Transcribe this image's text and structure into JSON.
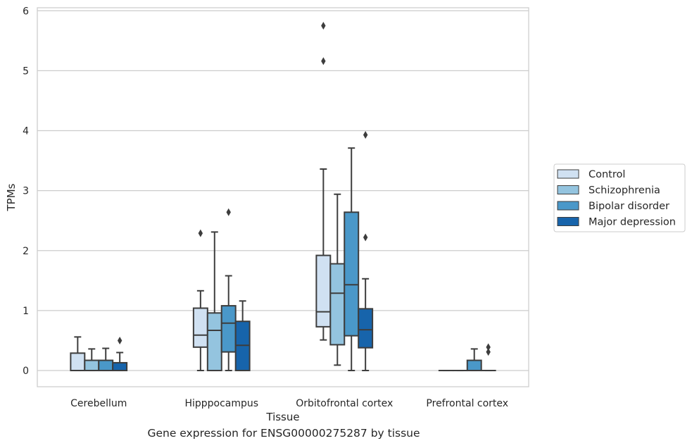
{
  "caption": "Gene expression for ENSG00000275287 by tissue",
  "chart_data": {
    "type": "box",
    "xlabel": "Tissue",
    "ylabel": "TPMs",
    "ylim": [
      -0.27,
      6.05
    ],
    "yticks": [
      0,
      1,
      2,
      3,
      4,
      5,
      6
    ],
    "grid": "horizontal",
    "legend_position": "right",
    "categories": [
      "Cerebellum",
      "Hipppocampus",
      "Orbitofrontal cortex",
      "Prefrontal cortex"
    ],
    "series": [
      {
        "name": "Control",
        "color": "#d0e1f2",
        "boxes": [
          {
            "whislo": 0.0,
            "q1": 0.0,
            "med": 0.0,
            "q3": 0.29,
            "whishi": 0.56,
            "fliers": []
          },
          {
            "whislo": 0.0,
            "q1": 0.39,
            "med": 0.59,
            "q3": 1.04,
            "whishi": 1.33,
            "fliers": [
              2.29
            ]
          },
          {
            "whislo": 0.51,
            "q1": 0.73,
            "med": 0.98,
            "q3": 1.92,
            "whishi": 3.36,
            "fliers": [
              5.16,
              5.75
            ]
          },
          {
            "whislo": 0.0,
            "q1": 0.0,
            "med": 0.0,
            "q3": 0.0,
            "whishi": 0.0,
            "fliers": []
          }
        ]
      },
      {
        "name": "Schizophrenia",
        "color": "#94c4df",
        "boxes": [
          {
            "whislo": 0.0,
            "q1": 0.0,
            "med": 0.0,
            "q3": 0.17,
            "whishi": 0.36,
            "fliers": []
          },
          {
            "whislo": 0.0,
            "q1": 0.0,
            "med": 0.67,
            "q3": 0.96,
            "whishi": 2.31,
            "fliers": []
          },
          {
            "whislo": 0.09,
            "q1": 0.43,
            "med": 1.29,
            "q3": 1.78,
            "whishi": 2.94,
            "fliers": []
          },
          {
            "whislo": 0.0,
            "q1": 0.0,
            "med": 0.0,
            "q3": 0.0,
            "whishi": 0.0,
            "fliers": []
          }
        ]
      },
      {
        "name": "Bipolar disorder",
        "color": "#4a98c9",
        "boxes": [
          {
            "whislo": 0.0,
            "q1": 0.0,
            "med": 0.0,
            "q3": 0.17,
            "whishi": 0.37,
            "fliers": []
          },
          {
            "whislo": 0.0,
            "q1": 0.31,
            "med": 0.79,
            "q3": 1.08,
            "whishi": 1.58,
            "fliers": [
              2.64
            ]
          },
          {
            "whislo": 0.0,
            "q1": 0.58,
            "med": 1.43,
            "q3": 2.64,
            "whishi": 3.71,
            "fliers": []
          },
          {
            "whislo": 0.0,
            "q1": 0.0,
            "med": 0.0,
            "q3": 0.17,
            "whishi": 0.36,
            "fliers": []
          }
        ]
      },
      {
        "name": "Major depression",
        "color": "#1764ab",
        "boxes": [
          {
            "whislo": 0.0,
            "q1": 0.0,
            "med": 0.0,
            "q3": 0.13,
            "whishi": 0.3,
            "fliers": [
              0.5
            ]
          },
          {
            "whislo": 0.0,
            "q1": 0.0,
            "med": 0.42,
            "q3": 0.82,
            "whishi": 1.16,
            "fliers": []
          },
          {
            "whislo": 0.0,
            "q1": 0.38,
            "med": 0.68,
            "q3": 1.03,
            "whishi": 1.53,
            "fliers": [
              2.22,
              3.93
            ]
          },
          {
            "whislo": 0.0,
            "q1": 0.0,
            "med": 0.0,
            "q3": 0.0,
            "whishi": 0.0,
            "fliers": [
              0.31,
              0.39
            ]
          }
        ]
      }
    ]
  }
}
